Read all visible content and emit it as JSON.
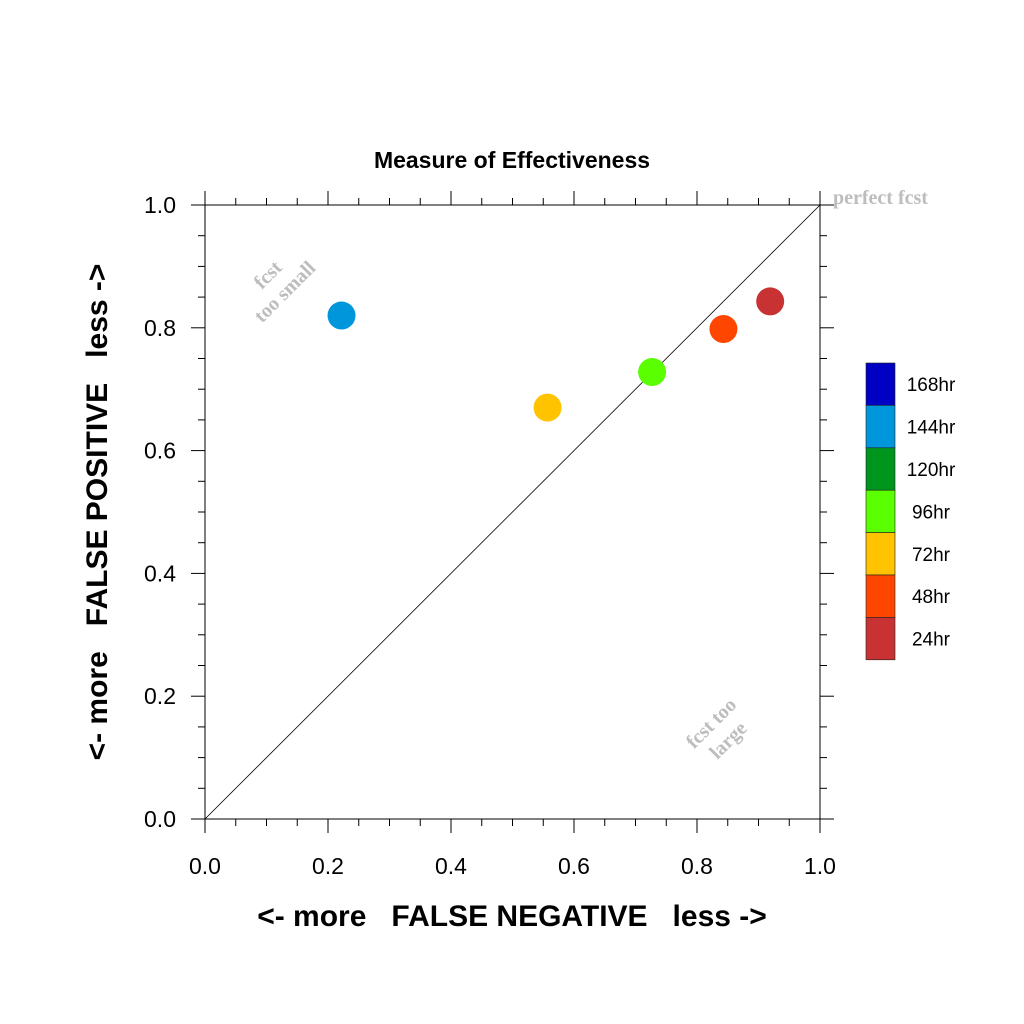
{
  "chart_data": {
    "type": "scatter",
    "title": "Measure of Effectiveness",
    "xlabel": "<- more   FALSE NEGATIVE   less ->",
    "ylabel": "<- more   FALSE POSITIVE   less ->",
    "xlim": [
      0.0,
      1.0
    ],
    "ylim": [
      0.0,
      1.0
    ],
    "xticks": [
      "0.0",
      "0.2",
      "0.4",
      "0.6",
      "0.8",
      "1.0"
    ],
    "yticks": [
      "0.0",
      "0.2",
      "0.4",
      "0.6",
      "0.8",
      "1.0"
    ],
    "reference_line": "y = x",
    "grid": false,
    "annotations": {
      "perfect": "perfect fcst",
      "too_small": [
        "fcst",
        "too small"
      ],
      "too_large": [
        "fcst too",
        "large"
      ]
    },
    "legend_position": "right",
    "legend": [
      {
        "label": "168hr",
        "color": "#0000c4"
      },
      {
        "label": "144hr",
        "color": "#0096dc"
      },
      {
        "label": "120hr",
        "color": "#00961e"
      },
      {
        "label": "96hr",
        "color": "#5aff00"
      },
      {
        "label": "72hr",
        "color": "#ffc300"
      },
      {
        "label": "48hr",
        "color": "#ff4600"
      },
      {
        "label": "24hr",
        "color": "#c83232"
      }
    ],
    "series": [
      {
        "name": "144hr",
        "x": 0.222,
        "y": 0.82,
        "color": "#0096dc"
      },
      {
        "name": "72hr",
        "x": 0.557,
        "y": 0.67,
        "color": "#ffc300"
      },
      {
        "name": "96hr",
        "x": 0.727,
        "y": 0.728,
        "color": "#5aff00"
      },
      {
        "name": "48hr",
        "x": 0.843,
        "y": 0.798,
        "color": "#ff4600"
      },
      {
        "name": "24hr",
        "x": 0.919,
        "y": 0.843,
        "color": "#c83232"
      }
    ]
  }
}
